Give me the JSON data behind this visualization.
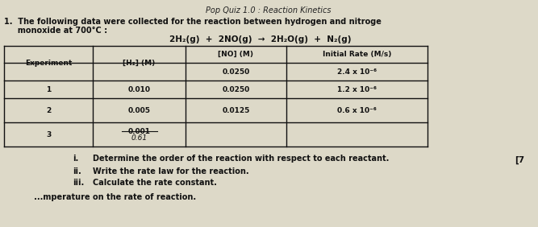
{
  "title_top": "Pop Quiz 1.0 : Reaction Kinetics",
  "intro_line1": "1.  The following data were collected for the reaction between hydrogen and nitroge",
  "intro_line2": "     monoxide at 700°C :",
  "equation": "2H₂(g)  +  2NO(g)  →  2H₂O(g)  +  N₂(g)",
  "col_headers": [
    "Experiment",
    "[H₂] (M)",
    "[NO] (M)",
    "Initial Rate (M/s)"
  ],
  "row0_no": "0.0250",
  "row0_rate": "2.4 x 10⁻⁶",
  "row1_exp": "1",
  "row1_h2": "0.010",
  "row1_no": "0.0250",
  "row1_rate": "1.2 x 10⁻⁶",
  "row2_exp": "2",
  "row2_h2": "0.005",
  "row2_no": "0.0125",
  "row2_rate": "0.6 x 10⁻⁶",
  "row3_exp": "3",
  "row3_h2_strike": "0.001",
  "row3_h2_hand": "0.61",
  "questions_i": "Determine the order of the reaction with respect to each reactant.",
  "questions_ii": "Write the rate law for the reaction.",
  "questions_iii": "Calculate the rate constant.",
  "footer": "           ...mperature on the rate of reaction.",
  "mark": "[7",
  "bg_color": "#d8d3c0",
  "paper_color": "#ddd9c8",
  "text_color": "#111111",
  "table_fill": "#ddd9c8",
  "border_color": "#111111",
  "title_color": "#222222"
}
